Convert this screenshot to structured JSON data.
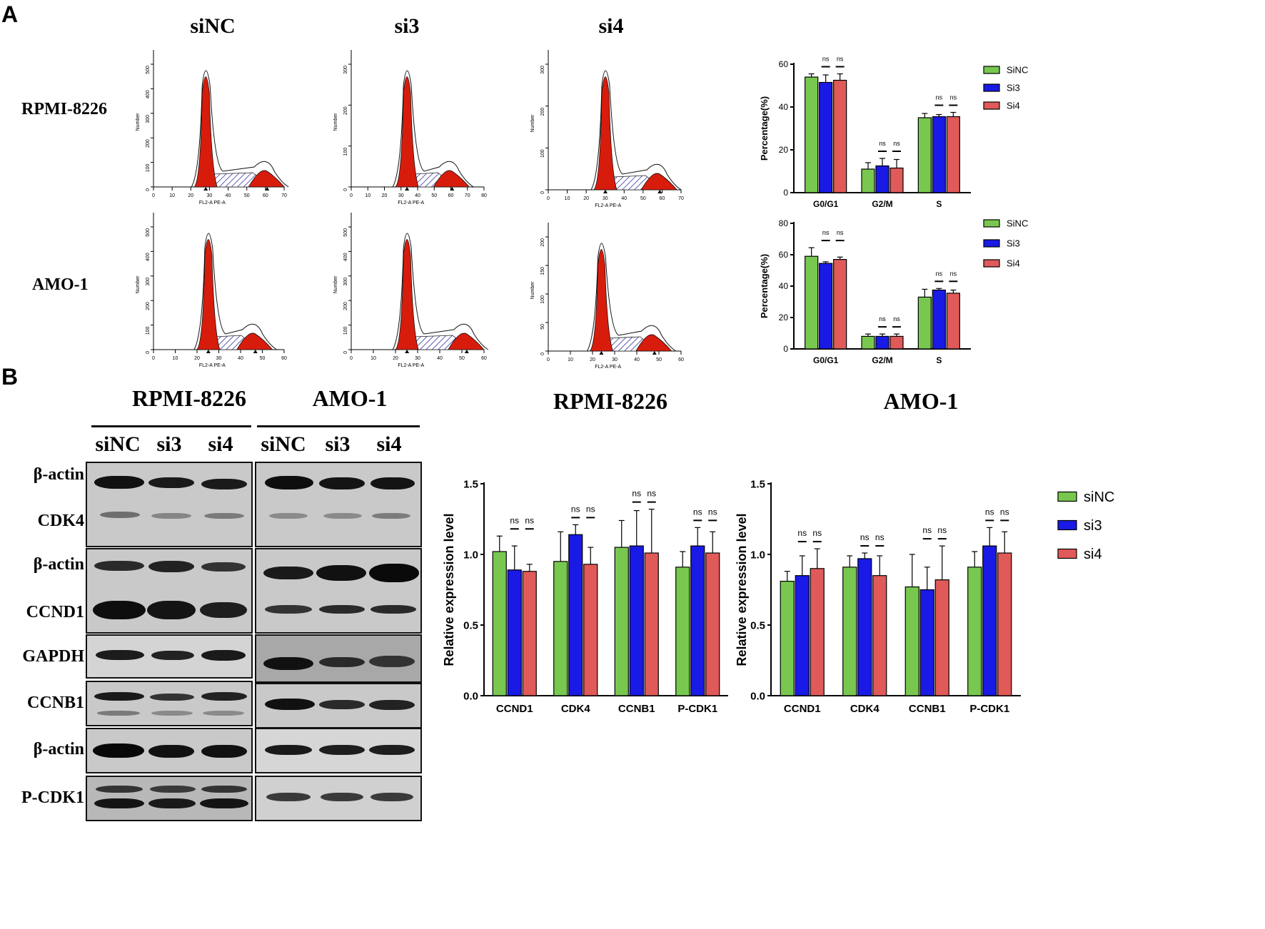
{
  "panels": {
    "a": "A",
    "b": "B"
  },
  "flow": {
    "columns": [
      "siNC",
      "si3",
      "si4"
    ],
    "rows": [
      "RPMI-8226",
      "AMO-1"
    ],
    "axis_y_label": "Number",
    "axis_x_label": "FL2-A PE-A",
    "plots": [
      {
        "xt": [
          "0",
          "10",
          "20",
          "30",
          "40",
          "50",
          "60",
          "70"
        ],
        "yt": [
          "0",
          "100",
          "200",
          "300",
          "400",
          "500"
        ]
      },
      {
        "xt": [
          "0",
          "10",
          "20",
          "30",
          "40",
          "50",
          "60",
          "70",
          "80"
        ],
        "yt": [
          "0",
          "100",
          "200",
          "300"
        ]
      },
      {
        "xt": [
          "0",
          "10",
          "20",
          "30",
          "40",
          "50",
          "60",
          "70"
        ],
        "yt": [
          "0",
          "100",
          "200",
          "300"
        ]
      },
      {
        "xt": [
          "0",
          "10",
          "20",
          "30",
          "40",
          "50",
          "60"
        ],
        "yt": [
          "0",
          "100",
          "200",
          "300",
          "400",
          "500"
        ]
      },
      {
        "xt": [
          "0",
          "10",
          "20",
          "30",
          "40",
          "50",
          "60"
        ],
        "yt": [
          "0",
          "100",
          "200",
          "300",
          "400",
          "500"
        ]
      },
      {
        "xt": [
          "0",
          "10",
          "20",
          "30",
          "40",
          "50",
          "60"
        ],
        "yt": [
          "0",
          "50",
          "100",
          "150",
          "200"
        ]
      }
    ]
  },
  "western": {
    "groups": [
      "RPMI-8226",
      "AMO-1"
    ],
    "lanes": [
      "siNC",
      "si3",
      "si4"
    ],
    "labels": [
      "β-actin",
      "CDK4",
      "β-actin",
      "CCND1",
      "GAPDH",
      "CCNB1",
      "β-actin",
      "P-CDK1"
    ]
  },
  "chart_titles": [
    "RPMI-8226",
    "AMO-1"
  ],
  "colors": {
    "siNC": "#78c850",
    "si3": "#1a1ae6",
    "si4": "#e05a5a"
  },
  "chart_data": [
    {
      "type": "bar",
      "categories": [
        "G0/G1",
        "G2/M",
        "S"
      ],
      "ylabel": "Percentage(%)",
      "ylim": [
        0,
        60
      ],
      "yticks": [
        0,
        20,
        40,
        60
      ],
      "series": [
        {
          "name": "SiNC",
          "values": [
            54,
            11,
            35
          ],
          "errors": [
            1.5,
            3,
            2
          ]
        },
        {
          "name": "Si3",
          "values": [
            51.5,
            12.5,
            35.5
          ],
          "errors": [
            3.5,
            3.5,
            1
          ]
        },
        {
          "name": "Si4",
          "values": [
            52.5,
            11.5,
            35.5
          ],
          "errors": [
            3,
            4,
            2
          ]
        }
      ],
      "annotations": [
        "ns",
        "ns",
        "ns",
        "ns",
        "ns",
        "ns"
      ]
    },
    {
      "type": "bar",
      "categories": [
        "G0/G1",
        "G2/M",
        "S"
      ],
      "ylabel": "Percentage(%)",
      "ylim": [
        0,
        80
      ],
      "yticks": [
        0,
        20,
        40,
        60,
        80
      ],
      "series": [
        {
          "name": "SiNC",
          "values": [
            59,
            8,
            33
          ],
          "errors": [
            5.5,
            1.5,
            5
          ]
        },
        {
          "name": "Si3",
          "values": [
            54.5,
            8,
            37.5
          ],
          "errors": [
            1,
            1.5,
            1
          ]
        },
        {
          "name": "Si4",
          "values": [
            57,
            8,
            35.5
          ],
          "errors": [
            1.5,
            1.5,
            2
          ]
        }
      ],
      "annotations": [
        "ns",
        "ns",
        "ns",
        "ns",
        "ns",
        "ns"
      ]
    },
    {
      "type": "bar",
      "title": "RPMI-8226",
      "categories": [
        "CCND1",
        "CDK4",
        "CCNB1",
        "P-CDK1"
      ],
      "ylabel": "Relative expression level",
      "ylim": [
        0,
        1.5
      ],
      "yticks": [
        "0.0",
        "0.5",
        "1.0",
        "1.5"
      ],
      "series": [
        {
          "name": "siNC",
          "values": [
            1.02,
            0.95,
            1.05,
            0.91
          ],
          "errors": [
            0.11,
            0.21,
            0.19,
            0.11
          ]
        },
        {
          "name": "si3",
          "values": [
            0.89,
            1.14,
            1.06,
            1.06
          ],
          "errors": [
            0.17,
            0.07,
            0.25,
            0.13
          ]
        },
        {
          "name": "si4",
          "values": [
            0.88,
            0.93,
            1.01,
            1.01
          ],
          "errors": [
            0.05,
            0.12,
            0.31,
            0.15
          ]
        }
      ],
      "annotations": [
        "ns",
        "ns",
        "ns",
        "ns",
        "ns",
        "ns",
        "ns",
        "ns"
      ]
    },
    {
      "type": "bar",
      "title": "AMO-1",
      "categories": [
        "CCND1",
        "CDK4",
        "CCNB1",
        "P-CDK1"
      ],
      "ylabel": "Relative expression level",
      "ylim": [
        0,
        1.5
      ],
      "yticks": [
        "0.0",
        "0.5",
        "1.0",
        "1.5"
      ],
      "series": [
        {
          "name": "siNC",
          "values": [
            0.81,
            0.91,
            0.77,
            0.91
          ],
          "errors": [
            0.07,
            0.08,
            0.23,
            0.11
          ]
        },
        {
          "name": "si3",
          "values": [
            0.85,
            0.97,
            0.75,
            1.06
          ],
          "errors": [
            0.14,
            0.04,
            0.16,
            0.13
          ]
        },
        {
          "name": "si4",
          "values": [
            0.9,
            0.85,
            0.82,
            1.01
          ],
          "errors": [
            0.14,
            0.14,
            0.24,
            0.15
          ]
        }
      ],
      "annotations": [
        "ns",
        "ns",
        "ns",
        "ns",
        "ns",
        "ns",
        "ns",
        "ns"
      ]
    }
  ]
}
